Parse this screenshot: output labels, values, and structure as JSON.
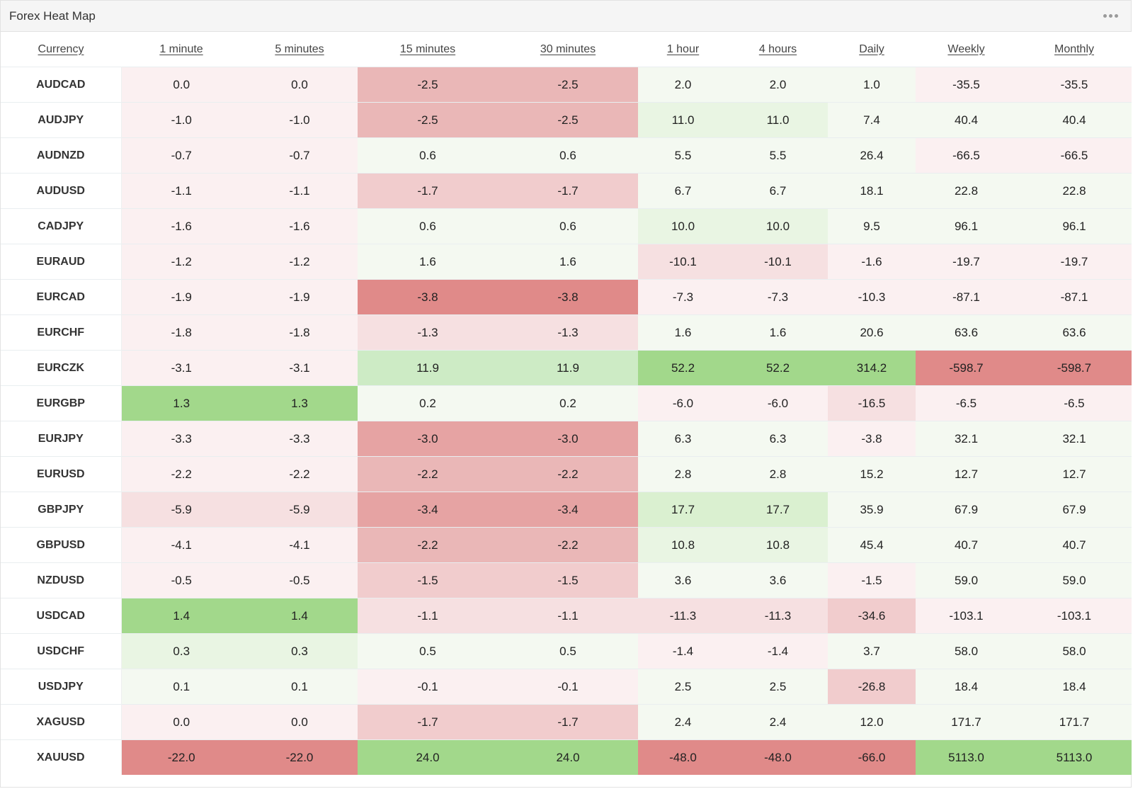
{
  "widget": {
    "title": "Forex Heat Map",
    "menu_icon": "more-horizontal-icon"
  },
  "columns": [
    "Currency",
    "1 minute",
    "5 minutes",
    "15 minutes",
    "30 minutes",
    "1 hour",
    "4 hours",
    "Daily",
    "Weekly",
    "Monthly"
  ],
  "colors": {
    "neg": [
      "#fbf0f1",
      "#f6e0e1",
      "#f1cccd",
      "#eab7b7",
      "#e6a3a3",
      "#e08a89"
    ],
    "pos": [
      "#f4f9f1",
      "#e9f5e3",
      "#daf0d0",
      "#cdebc5",
      "#b5e0a4",
      "#a2d88b"
    ]
  },
  "rows": [
    {
      "pair": "AUDCAD",
      "values": [
        "0.0",
        "0.0",
        "-2.5",
        "-2.5",
        "2.0",
        "2.0",
        "1.0",
        "-35.5",
        "-35.5"
      ],
      "heat": [
        -1,
        -1,
        -4,
        -4,
        1,
        1,
        1,
        -1,
        -1
      ]
    },
    {
      "pair": "AUDJPY",
      "values": [
        "-1.0",
        "-1.0",
        "-2.5",
        "-2.5",
        "11.0",
        "11.0",
        "7.4",
        "40.4",
        "40.4"
      ],
      "heat": [
        -1,
        -1,
        -4,
        -4,
        2,
        2,
        1,
        1,
        1
      ]
    },
    {
      "pair": "AUDNZD",
      "values": [
        "-0.7",
        "-0.7",
        "0.6",
        "0.6",
        "5.5",
        "5.5",
        "26.4",
        "-66.5",
        "-66.5"
      ],
      "heat": [
        -1,
        -1,
        1,
        1,
        1,
        1,
        1,
        -1,
        -1
      ]
    },
    {
      "pair": "AUDUSD",
      "values": [
        "-1.1",
        "-1.1",
        "-1.7",
        "-1.7",
        "6.7",
        "6.7",
        "18.1",
        "22.8",
        "22.8"
      ],
      "heat": [
        -1,
        -1,
        -3,
        -3,
        1,
        1,
        1,
        1,
        1
      ]
    },
    {
      "pair": "CADJPY",
      "values": [
        "-1.6",
        "-1.6",
        "0.6",
        "0.6",
        "10.0",
        "10.0",
        "9.5",
        "96.1",
        "96.1"
      ],
      "heat": [
        -1,
        -1,
        1,
        1,
        2,
        2,
        1,
        1,
        1
      ]
    },
    {
      "pair": "EURAUD",
      "values": [
        "-1.2",
        "-1.2",
        "1.6",
        "1.6",
        "-10.1",
        "-10.1",
        "-1.6",
        "-19.7",
        "-19.7"
      ],
      "heat": [
        -1,
        -1,
        1,
        1,
        -2,
        -2,
        -1,
        -1,
        -1
      ]
    },
    {
      "pair": "EURCAD",
      "values": [
        "-1.9",
        "-1.9",
        "-3.8",
        "-3.8",
        "-7.3",
        "-7.3",
        "-10.3",
        "-87.1",
        "-87.1"
      ],
      "heat": [
        -1,
        -1,
        -6,
        -6,
        -1,
        -1,
        -1,
        -1,
        -1
      ]
    },
    {
      "pair": "EURCHF",
      "values": [
        "-1.8",
        "-1.8",
        "-1.3",
        "-1.3",
        "1.6",
        "1.6",
        "20.6",
        "63.6",
        "63.6"
      ],
      "heat": [
        -1,
        -1,
        -2,
        -2,
        1,
        1,
        1,
        1,
        1
      ]
    },
    {
      "pair": "EURCZK",
      "values": [
        "-3.1",
        "-3.1",
        "11.9",
        "11.9",
        "52.2",
        "52.2",
        "314.2",
        "-598.7",
        "-598.7"
      ],
      "heat": [
        -1,
        -1,
        4,
        4,
        6,
        6,
        6,
        -6,
        -6
      ]
    },
    {
      "pair": "EURGBP",
      "values": [
        "1.3",
        "1.3",
        "0.2",
        "0.2",
        "-6.0",
        "-6.0",
        "-16.5",
        "-6.5",
        "-6.5"
      ],
      "heat": [
        6,
        6,
        1,
        1,
        -1,
        -1,
        -2,
        -1,
        -1
      ]
    },
    {
      "pair": "EURJPY",
      "values": [
        "-3.3",
        "-3.3",
        "-3.0",
        "-3.0",
        "6.3",
        "6.3",
        "-3.8",
        "32.1",
        "32.1"
      ],
      "heat": [
        -1,
        -1,
        -5,
        -5,
        1,
        1,
        -1,
        1,
        1
      ]
    },
    {
      "pair": "EURUSD",
      "values": [
        "-2.2",
        "-2.2",
        "-2.2",
        "-2.2",
        "2.8",
        "2.8",
        "15.2",
        "12.7",
        "12.7"
      ],
      "heat": [
        -1,
        -1,
        -4,
        -4,
        1,
        1,
        1,
        1,
        1
      ]
    },
    {
      "pair": "GBPJPY",
      "values": [
        "-5.9",
        "-5.9",
        "-3.4",
        "-3.4",
        "17.7",
        "17.7",
        "35.9",
        "67.9",
        "67.9"
      ],
      "heat": [
        -2,
        -2,
        -5,
        -5,
        3,
        3,
        1,
        1,
        1
      ]
    },
    {
      "pair": "GBPUSD",
      "values": [
        "-4.1",
        "-4.1",
        "-2.2",
        "-2.2",
        "10.8",
        "10.8",
        "45.4",
        "40.7",
        "40.7"
      ],
      "heat": [
        -1,
        -1,
        -4,
        -4,
        2,
        2,
        1,
        1,
        1
      ]
    },
    {
      "pair": "NZDUSD",
      "values": [
        "-0.5",
        "-0.5",
        "-1.5",
        "-1.5",
        "3.6",
        "3.6",
        "-1.5",
        "59.0",
        "59.0"
      ],
      "heat": [
        -1,
        -1,
        -3,
        -3,
        1,
        1,
        -1,
        1,
        1
      ]
    },
    {
      "pair": "USDCAD",
      "values": [
        "1.4",
        "1.4",
        "-1.1",
        "-1.1",
        "-11.3",
        "-11.3",
        "-34.6",
        "-103.1",
        "-103.1"
      ],
      "heat": [
        6,
        6,
        -2,
        -2,
        -2,
        -2,
        -3,
        -1,
        -1
      ]
    },
    {
      "pair": "USDCHF",
      "values": [
        "0.3",
        "0.3",
        "0.5",
        "0.5",
        "-1.4",
        "-1.4",
        "3.7",
        "58.0",
        "58.0"
      ],
      "heat": [
        2,
        2,
        1,
        1,
        -1,
        -1,
        1,
        1,
        1
      ]
    },
    {
      "pair": "USDJPY",
      "values": [
        "0.1",
        "0.1",
        "-0.1",
        "-0.1",
        "2.5",
        "2.5",
        "-26.8",
        "18.4",
        "18.4"
      ],
      "heat": [
        1,
        1,
        -1,
        -1,
        1,
        1,
        -3,
        1,
        1
      ]
    },
    {
      "pair": "XAGUSD",
      "values": [
        "0.0",
        "0.0",
        "-1.7",
        "-1.7",
        "2.4",
        "2.4",
        "12.0",
        "171.7",
        "171.7"
      ],
      "heat": [
        -1,
        -1,
        -3,
        -3,
        1,
        1,
        1,
        1,
        1
      ]
    },
    {
      "pair": "XAUUSD",
      "values": [
        "-22.0",
        "-22.0",
        "24.0",
        "24.0",
        "-48.0",
        "-48.0",
        "-66.0",
        "5113.0",
        "5113.0"
      ],
      "heat": [
        -6,
        -6,
        6,
        6,
        -6,
        -6,
        -6,
        6,
        6
      ]
    }
  ]
}
